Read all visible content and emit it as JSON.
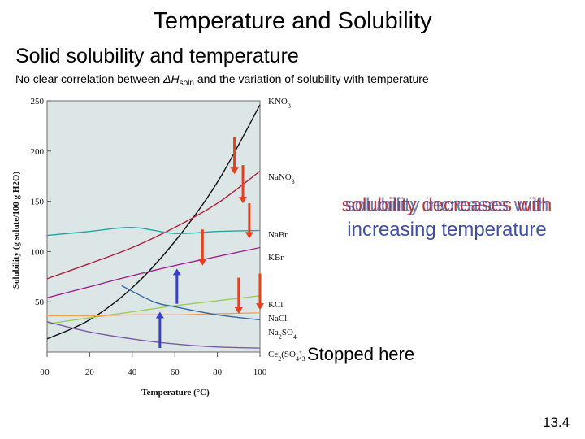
{
  "slide": {
    "title": "Temperature and Solubility",
    "subtitle": "Solid solubility and temperature",
    "note_prefix": "No clear correlation between ",
    "note_symbol": "ΔH",
    "note_sub": "soln",
    "note_suffix": " and the variation of solubility with temperature",
    "overlay_line1": "solubility increases with",
    "overlay_line1_alt": "solubility decreases with",
    "overlay_line2": "increasing temperature",
    "stopped_text": "Stopped  here",
    "page_number": "13.4"
  },
  "colors": {
    "increase_arrow": "#e8401c",
    "decrease_arrow": "#3a3fc8",
    "plot_bg": "#dde6e6"
  },
  "chart_data": {
    "type": "line",
    "xlabel": "Temperature (°C)",
    "ylabel": "Solubility (g solute/100 g H2O)",
    "xlim": [
      0,
      100
    ],
    "ylim": [
      0,
      250
    ],
    "xticks": [
      0,
      20,
      40,
      60,
      80,
      100
    ],
    "yticks": [
      50,
      100,
      150,
      200,
      250
    ],
    "grid": false,
    "series": [
      {
        "name": "KNO3",
        "label": "KNO3",
        "color": "#111111",
        "x": [
          0,
          20,
          40,
          60,
          80,
          100
        ],
        "y": [
          13,
          32,
          64,
          110,
          169,
          246
        ]
      },
      {
        "name": "NaNO3",
        "label": "NaNO3",
        "color": "#b0203c",
        "x": [
          0,
          20,
          40,
          60,
          80,
          100
        ],
        "y": [
          73,
          88,
          104,
          124,
          148,
          180
        ]
      },
      {
        "name": "NaBr",
        "label": "NaBr",
        "color": "#2aa3a0",
        "x": [
          0,
          20,
          40,
          60,
          80,
          100
        ],
        "y": [
          116,
          120,
          124,
          118,
          120,
          121
        ]
      },
      {
        "name": "KBr",
        "label": "KBr",
        "color": "#a0248c",
        "x": [
          0,
          20,
          40,
          60,
          80,
          100
        ],
        "y": [
          54,
          65,
          76,
          86,
          95,
          104
        ]
      },
      {
        "name": "KCl",
        "label": "KCl",
        "color": "#9ccc5c",
        "x": [
          0,
          20,
          40,
          60,
          80,
          100
        ],
        "y": [
          28,
          34,
          40,
          46,
          51,
          56
        ]
      },
      {
        "name": "NaCl",
        "label": "NaCl",
        "color": "#f2a35a",
        "x": [
          0,
          20,
          40,
          60,
          80,
          100
        ],
        "y": [
          36,
          36,
          37,
          37,
          38,
          39
        ]
      },
      {
        "name": "Na2SO4",
        "label": "Na2SO4",
        "color": "#2f6aa8",
        "x": [
          35,
          50,
          60,
          80,
          100
        ],
        "y": [
          66,
          50,
          45,
          37,
          32
        ]
      },
      {
        "name": "Ce2(SO4)3",
        "label": "Ce2(SO4)3",
        "color": "#7b5aa8",
        "x": [
          0,
          20,
          40,
          60,
          80,
          100
        ],
        "y": [
          30,
          20,
          13,
          8,
          5,
          4
        ]
      }
    ],
    "arrows": [
      {
        "x": 88,
        "y_from": 214,
        "y_to": 177,
        "kind": "increase"
      },
      {
        "x": 92,
        "y_from": 186,
        "y_to": 148,
        "kind": "increase"
      },
      {
        "x": 95,
        "y_from": 148,
        "y_to": 113,
        "kind": "increase"
      },
      {
        "x": 73,
        "y_from": 122,
        "y_to": 86,
        "kind": "increase"
      },
      {
        "x": 90,
        "y_from": 74,
        "y_to": 38,
        "kind": "increase"
      },
      {
        "x": 100,
        "y_from": 78,
        "y_to": 42,
        "kind": "increase"
      },
      {
        "x": 61,
        "y_from": 48,
        "y_to": 83,
        "kind": "decrease"
      },
      {
        "x": 53,
        "y_from": 4,
        "y_to": 40,
        "kind": "decrease"
      }
    ]
  }
}
